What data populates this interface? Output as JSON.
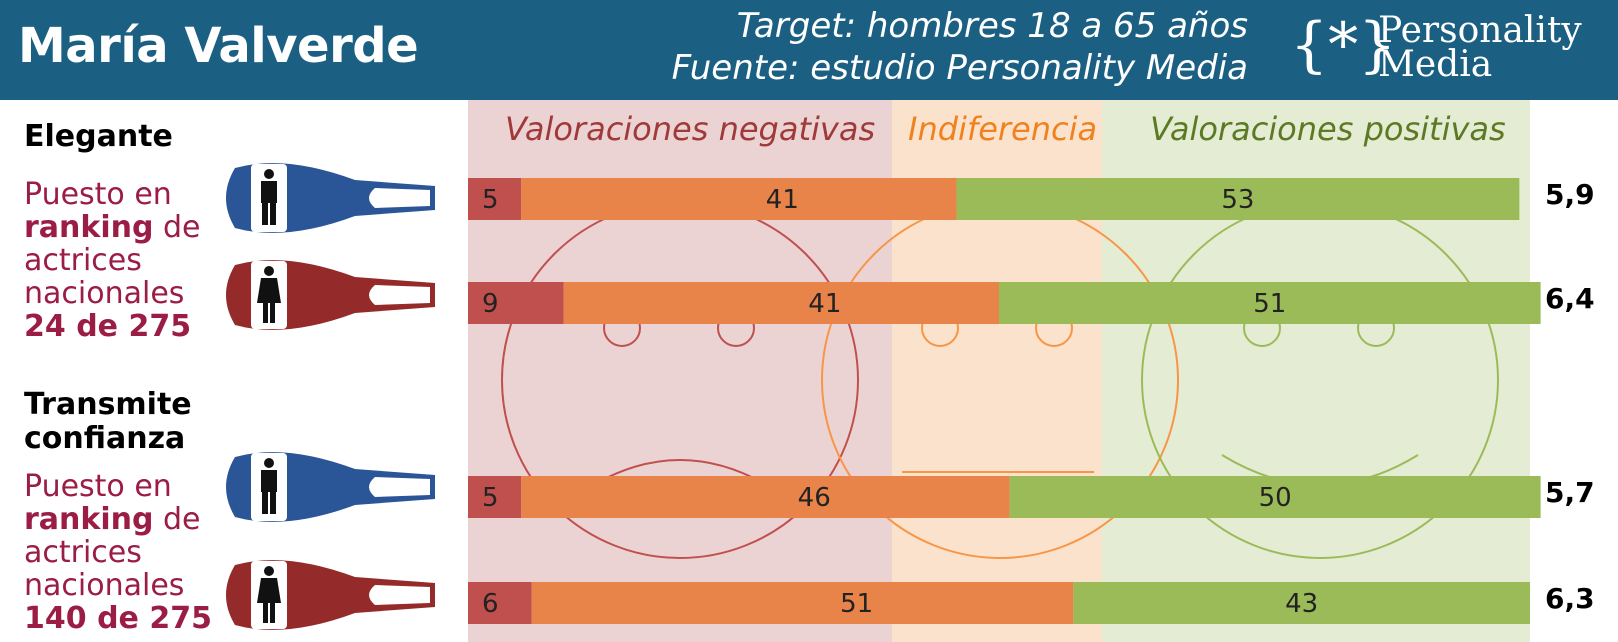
{
  "header": {
    "title": "María Valverde",
    "target": "Target: hombres 18 a 65 años",
    "source": "Fuente: estudio Personality Media",
    "logo_symbol": "{*}",
    "logo_line1": "Personality",
    "logo_line2": "Media"
  },
  "zones": {
    "negative": "Valoraciones negativas",
    "indifference": "Indiferencia",
    "positive": "Valoraciones positivas"
  },
  "attributes": [
    {
      "name": "Elegante",
      "rank_prefix": "Puesto en",
      "rank_bold": "ranking",
      "rank_suffix": "de",
      "rank_line3": "actrices",
      "rank_line4": "nacionales",
      "rank_value": "24 de 275"
    },
    {
      "name_line1": "Transmite",
      "name_line2": "confianza",
      "rank_prefix": "Puesto en",
      "rank_bold": "ranking",
      "rank_suffix": "de",
      "rank_line3": "actrices",
      "rank_line4": "nacionales",
      "rank_value": "140 de 275"
    }
  ],
  "colors": {
    "very_negative": "#c0504d",
    "negative": "#e8834a",
    "indifferent": "#f79646",
    "positive": "#9bbb59",
    "male": "#2a5597",
    "female": "#952a2a"
  },
  "icons": {
    "male": "male-figure-bottle-icon",
    "female": "female-figure-bottle-icon"
  },
  "chart_data": {
    "type": "bar",
    "orientation": "horizontal-stacked",
    "categories": [
      "Elegante - hombres",
      "Elegante - mujeres",
      "Transmite confianza - hombres",
      "Transmite confianza - mujeres"
    ],
    "series": [
      {
        "name": "",
        "values": [
          5,
          9,
          5,
          6
        ]
      },
      {
        "name": "",
        "values": [
          41,
          41,
          46,
          51
        ]
      },
      {
        "name": "",
        "values": [
          53,
          51,
          50,
          43
        ]
      }
    ],
    "scores": [
      "5,9",
      "6,4",
      "5,7",
      "6,3"
    ]
  }
}
